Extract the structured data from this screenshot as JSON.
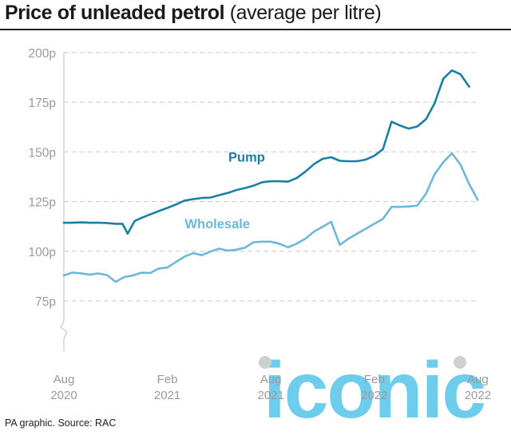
{
  "header": {
    "title_bold": "Price of unleaded petrol",
    "title_rest": "(average per litre)"
  },
  "footer": {
    "source": "PA graphic. Source: RAC"
  },
  "watermark": {
    "text": "iconic"
  },
  "colors": {
    "pump": "#1b7fa3",
    "wholesale": "#6cb8d8",
    "grid": "#c8c8c8",
    "axis_text": "#9a9a9a",
    "watermark": "#55c3ea"
  },
  "chart_data": {
    "type": "line",
    "title": "Price of unleaded petrol (average per litre)",
    "xlabel": "",
    "ylabel": "",
    "ylim": [
      60,
      200
    ],
    "xlim": [
      "2020-08",
      "2022-08"
    ],
    "y_ticks": [
      75,
      100,
      125,
      150,
      175,
      200
    ],
    "y_tick_labels": [
      "75p",
      "100p",
      "125p",
      "150p",
      "175p",
      "200p"
    ],
    "axis_break": true,
    "grid": true,
    "x_ticks": [
      {
        "t": 0,
        "line1": "Aug",
        "line2": "2020"
      },
      {
        "t": 6,
        "line1": "Feb",
        "line2": "2021"
      },
      {
        "t": 12,
        "line1": "Aug",
        "line2": "2021"
      },
      {
        "t": 18,
        "line1": "Feb",
        "line2": "2022"
      },
      {
        "t": 24,
        "line1": "Aug",
        "line2": "2022"
      }
    ],
    "series": [
      {
        "name": "Pump",
        "color": "#1b7fa3",
        "points": [
          [
            0,
            114.3
          ],
          [
            0.5,
            114.3
          ],
          [
            1,
            114.5
          ],
          [
            1.5,
            114.3
          ],
          [
            2,
            114.3
          ],
          [
            2.5,
            114.2
          ],
          [
            3,
            113.8
          ],
          [
            3.4,
            113.8
          ],
          [
            3.7,
            108.8
          ],
          [
            4.1,
            115.2
          ],
          [
            4.5,
            116.8
          ],
          [
            5,
            118.5
          ],
          [
            5.5,
            120.2
          ],
          [
            6,
            121.8
          ],
          [
            6.5,
            123.5
          ],
          [
            7,
            125.5
          ],
          [
            7.5,
            126.2
          ],
          [
            8,
            126.8
          ],
          [
            8.5,
            127.0
          ],
          [
            9,
            128.2
          ],
          [
            9.5,
            129.3
          ],
          [
            10,
            130.8
          ],
          [
            10.5,
            131.8
          ],
          [
            11,
            133.0
          ],
          [
            11.5,
            134.7
          ],
          [
            12,
            135.2
          ],
          [
            12.5,
            135.2
          ],
          [
            13,
            135.0
          ],
          [
            13.5,
            136.8
          ],
          [
            14,
            140.0
          ],
          [
            14.5,
            143.8
          ],
          [
            15,
            146.5
          ],
          [
            15.5,
            147.3
          ],
          [
            16,
            145.5
          ],
          [
            16.5,
            145.3
          ],
          [
            17,
            145.3
          ],
          [
            17.5,
            146.1
          ],
          [
            18,
            148.0
          ],
          [
            18.5,
            151.3
          ],
          [
            19,
            165.2
          ],
          [
            19.5,
            163.2
          ],
          [
            20,
            161.7
          ],
          [
            20.5,
            162.8
          ],
          [
            21,
            166.5
          ],
          [
            21.5,
            174.5
          ],
          [
            22,
            186.8
          ],
          [
            22.5,
            191.0
          ],
          [
            23,
            189.0
          ],
          [
            23.5,
            182.8
          ]
        ]
      },
      {
        "name": "Wholesale",
        "color": "#6cb8d8",
        "points": [
          [
            0,
            87.8
          ],
          [
            0.5,
            89.3
          ],
          [
            1,
            88.8
          ],
          [
            1.5,
            88.2
          ],
          [
            2,
            88.8
          ],
          [
            2.5,
            88.0
          ],
          [
            3,
            84.6
          ],
          [
            3.5,
            87.0
          ],
          [
            4,
            87.8
          ],
          [
            4.5,
            89.2
          ],
          [
            5,
            89.0
          ],
          [
            5.5,
            91.3
          ],
          [
            6,
            91.8
          ],
          [
            6.5,
            94.6
          ],
          [
            7,
            97.3
          ],
          [
            7.5,
            99.0
          ],
          [
            8,
            98.0
          ],
          [
            8.5,
            99.8
          ],
          [
            9,
            101.3
          ],
          [
            9.5,
            100.3
          ],
          [
            10,
            100.8
          ],
          [
            10.5,
            101.8
          ],
          [
            11,
            104.5
          ],
          [
            11.5,
            104.8
          ],
          [
            12,
            104.8
          ],
          [
            12.5,
            103.8
          ],
          [
            13,
            102.0
          ],
          [
            13.5,
            103.8
          ],
          [
            14,
            106.3
          ],
          [
            14.5,
            109.8
          ],
          [
            15,
            112.3
          ],
          [
            15.5,
            114.8
          ],
          [
            16,
            103.2
          ],
          [
            16.5,
            106.3
          ],
          [
            17,
            108.8
          ],
          [
            17.5,
            111.3
          ],
          [
            18,
            113.8
          ],
          [
            18.5,
            116.3
          ],
          [
            19,
            122.3
          ],
          [
            19.5,
            122.3
          ],
          [
            20,
            122.5
          ],
          [
            20.5,
            123.0
          ],
          [
            21,
            129.0
          ],
          [
            21.5,
            138.8
          ],
          [
            22,
            144.8
          ],
          [
            22.5,
            149.3
          ],
          [
            23,
            143.5
          ],
          [
            23.5,
            133.8
          ],
          [
            24,
            125.8
          ]
        ]
      }
    ],
    "annotations": [
      {
        "text": "Pump",
        "series": "Pump"
      },
      {
        "text": "Wholesale",
        "series": "Wholesale"
      }
    ]
  }
}
